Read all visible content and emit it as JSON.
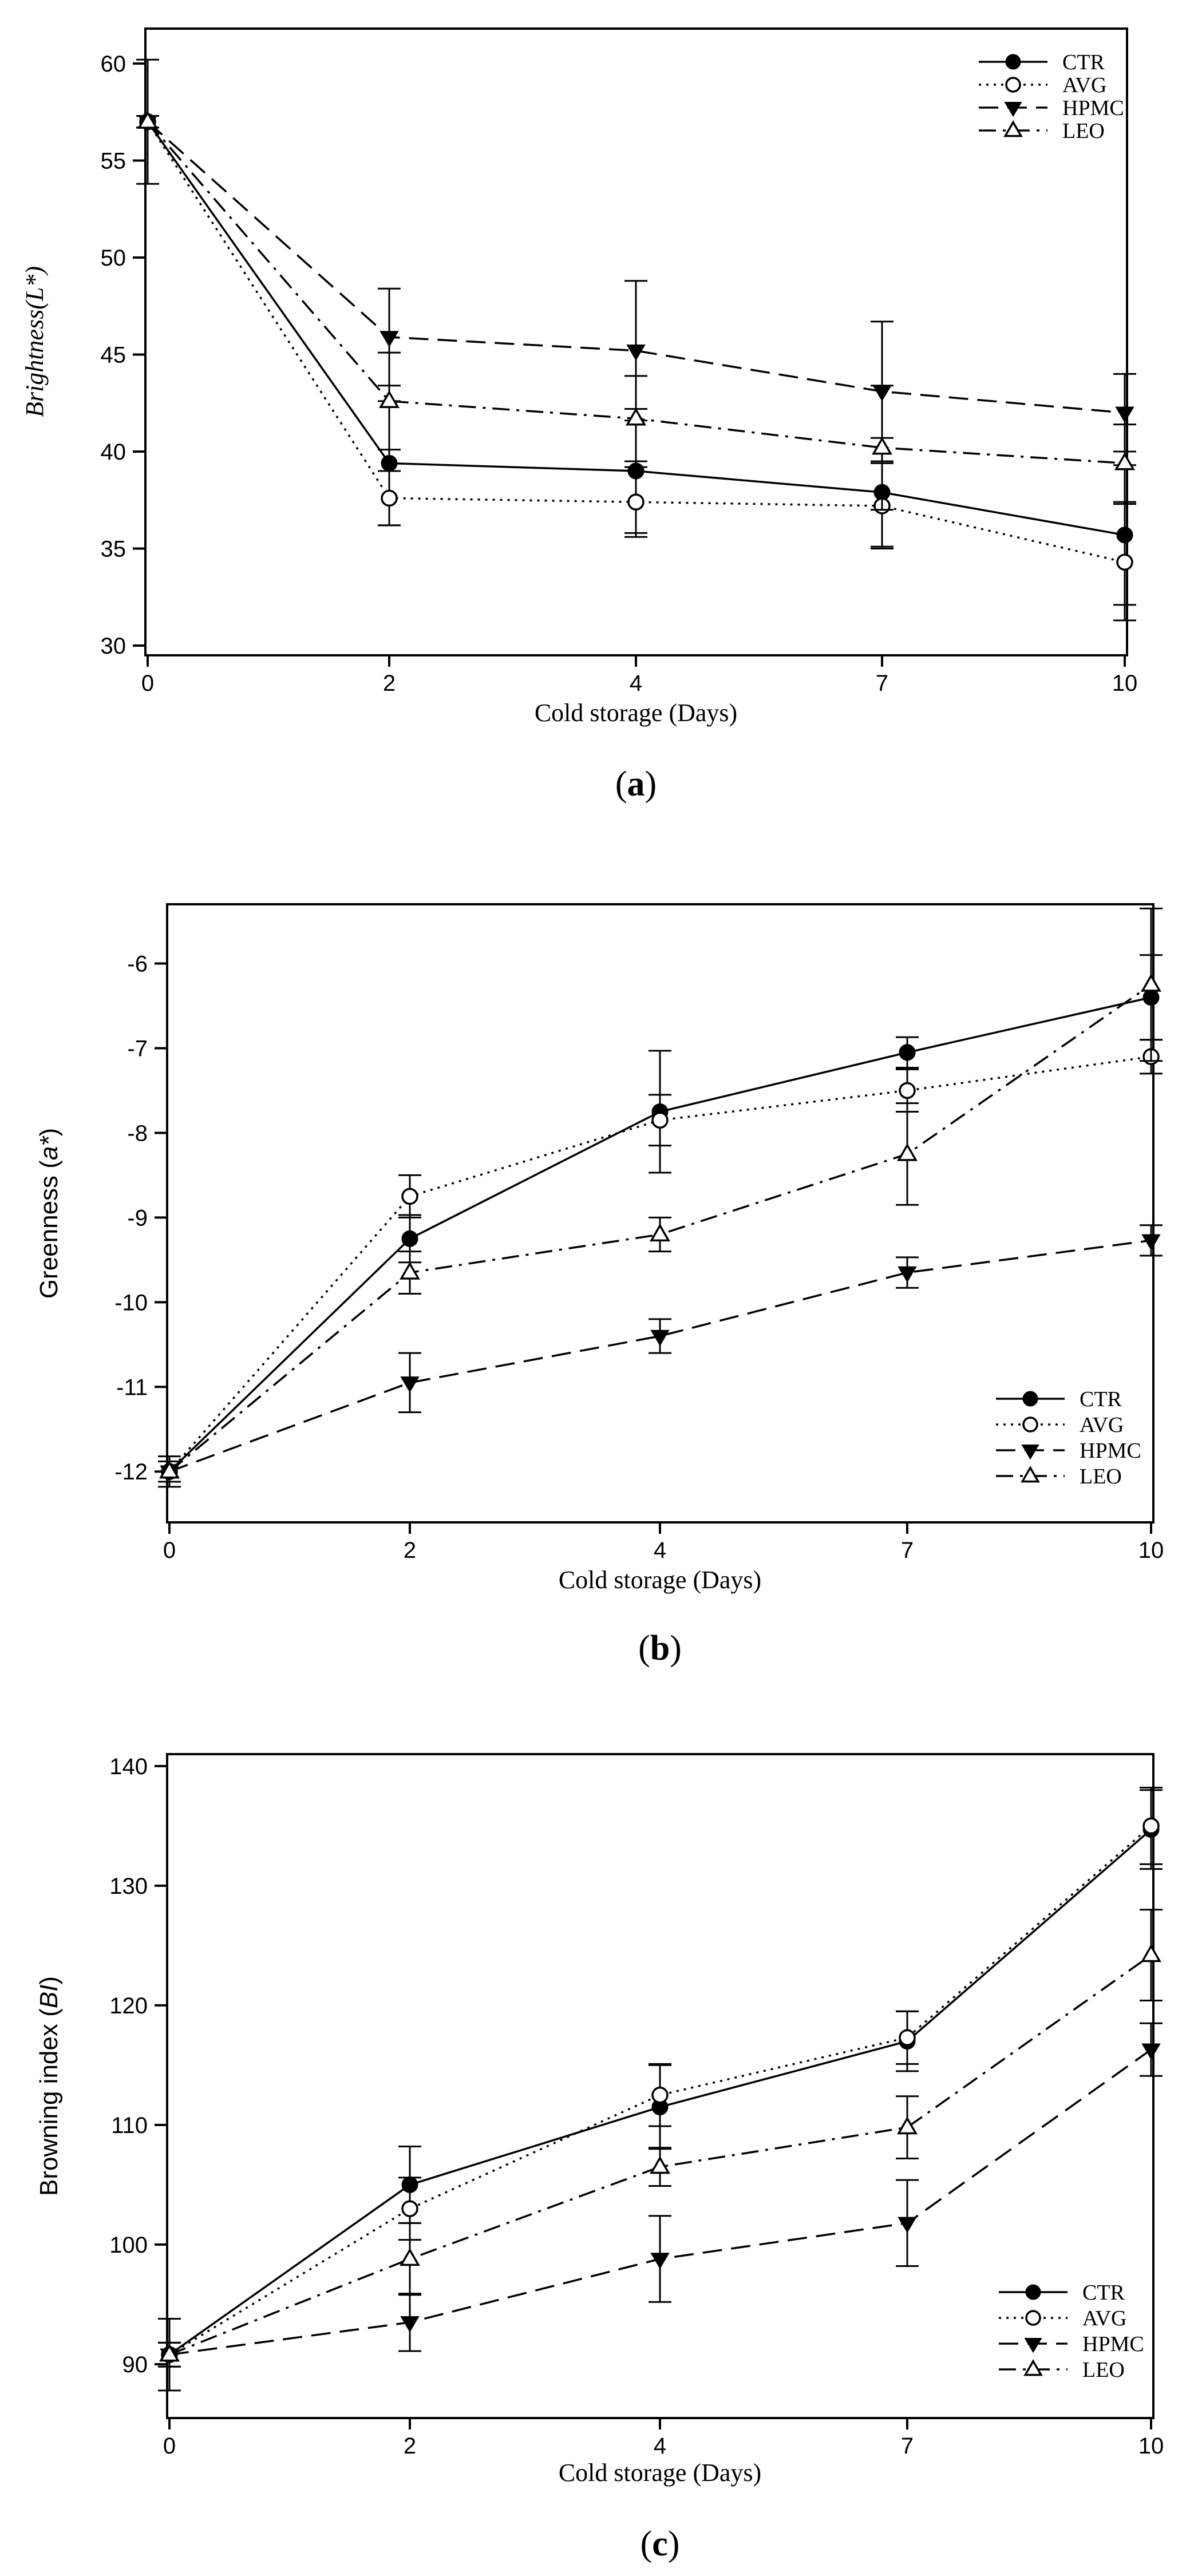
{
  "chart_data": [
    {
      "type": "line",
      "id": "a",
      "caption": "(a)",
      "caption_open": "(",
      "caption_letter": "a",
      "caption_close": ")",
      "xlabel": "Cold storage (Days)",
      "ylabel": "Brightness(L*)",
      "ylabel_parts": {
        "before": "Brightness(",
        "italic": "L*",
        "after": ")"
      },
      "categories": [
        "0",
        "2",
        "4",
        "7",
        "10"
      ],
      "yticks": [
        30,
        35,
        40,
        45,
        50,
        55,
        60
      ],
      "ylim": [
        29.5,
        61.8
      ],
      "legend_position": "top-right",
      "series": [
        {
          "name": "CTR",
          "marker": "circle-filled",
          "dash": "solid",
          "values": [
            57.0,
            39.4,
            39.0,
            37.9,
            35.7
          ],
          "errors": [
            3.2,
            3.2,
            3.2,
            2.8,
            3.6
          ]
        },
        {
          "name": "AVG",
          "marker": "circle-open",
          "dash": "dotted",
          "values": [
            57.0,
            37.6,
            37.4,
            37.2,
            34.3
          ],
          "errors": [
            0.3,
            1.4,
            1.8,
            2.2,
            3.0
          ]
        },
        {
          "name": "HPMC",
          "marker": "triangle-down",
          "dash": "dashed",
          "values": [
            57.0,
            45.9,
            45.2,
            43.1,
            42.0
          ],
          "errors": [
            0.3,
            2.5,
            3.6,
            3.6,
            2.0
          ]
        },
        {
          "name": "LEO",
          "marker": "triangle-up-open",
          "dash": "dashdot",
          "values": [
            57.0,
            42.6,
            41.7,
            40.2,
            39.4
          ],
          "errors": [
            0.3,
            2.5,
            2.2,
            3.2,
            2.0
          ]
        }
      ]
    },
    {
      "type": "line",
      "id": "b",
      "caption": "(b)",
      "caption_open": "(",
      "caption_letter": "b",
      "caption_close": ")",
      "xlabel": "Cold storage (Days)",
      "ylabel": "Greenness (a*)",
      "ylabel_parts": {
        "before": "Greenness (",
        "italic": "a*",
        "after": ")"
      },
      "categories": [
        "0",
        "2",
        "4",
        "7",
        "10"
      ],
      "yticks": [
        -12,
        -11,
        -10,
        -9,
        -8,
        -7,
        -6
      ],
      "ylim": [
        -12.6,
        -5.3
      ],
      "legend_position": "bottom-right",
      "series": [
        {
          "name": "CTR",
          "marker": "circle-filled",
          "dash": "solid",
          "values": [
            -12.0,
            -9.25,
            -7.75,
            -7.05,
            -6.4
          ],
          "errors": [
            0.18,
            0.28,
            0.72,
            0.18,
            0.5
          ]
        },
        {
          "name": "AVG",
          "marker": "circle-open",
          "dash": "dotted",
          "values": [
            -12.0,
            -8.75,
            -7.85,
            -7.5,
            -7.1
          ],
          "errors": [
            0.12,
            0.25,
            0.3,
            0.25,
            0.2
          ]
        },
        {
          "name": "HPMC",
          "marker": "triangle-down",
          "dash": "dashed",
          "values": [
            -12.0,
            -10.95,
            -10.4,
            -9.65,
            -9.27
          ],
          "errors": [
            0.12,
            0.35,
            0.2,
            0.18,
            0.18
          ]
        },
        {
          "name": "LEO",
          "marker": "triangle-up-open",
          "dash": "dashdot",
          "values": [
            -12.0,
            -9.65,
            -9.2,
            -8.25,
            -6.25
          ],
          "errors": [
            0.12,
            0.25,
            0.2,
            0.6,
            0.9
          ]
        }
      ]
    },
    {
      "type": "line",
      "id": "c",
      "caption": "(c)",
      "caption_open": "(",
      "caption_letter": "c",
      "caption_close": ")",
      "xlabel": "Cold storage (Days)",
      "ylabel": "Browning index (BI)",
      "ylabel_parts": {
        "before": "Browning index (",
        "italic": "BI",
        "after": ")"
      },
      "categories": [
        "0",
        "2",
        "4",
        "7",
        "10"
      ],
      "yticks": [
        90,
        100,
        110,
        120,
        130,
        140
      ],
      "ylim": [
        85.5,
        141
      ],
      "legend_position": "bottom-right",
      "series": [
        {
          "name": "CTR",
          "marker": "circle-filled",
          "dash": "solid",
          "values": [
            90.8,
            105.0,
            111.5,
            117.0,
            134.7
          ],
          "errors": [
            3.0,
            3.2,
            3.5,
            2.5,
            3.3
          ]
        },
        {
          "name": "AVG",
          "marker": "circle-open",
          "dash": "dotted",
          "values": [
            90.8,
            103.0,
            112.5,
            117.3,
            135.0
          ],
          "errors": [
            1.0,
            2.6,
            2.6,
            2.2,
            3.2
          ]
        },
        {
          "name": "HPMC",
          "marker": "triangle-down",
          "dash": "dashed",
          "values": [
            90.8,
            93.5,
            98.8,
            101.8,
            116.3
          ],
          "errors": [
            1.0,
            2.4,
            3.6,
            3.6,
            2.2
          ]
        },
        {
          "name": "LEO",
          "marker": "triangle-up-open",
          "dash": "dashdot",
          "values": [
            90.8,
            98.8,
            106.5,
            109.8,
            124.2
          ],
          "errors": [
            1.0,
            3.0,
            1.6,
            2.6,
            3.8
          ]
        }
      ]
    }
  ]
}
